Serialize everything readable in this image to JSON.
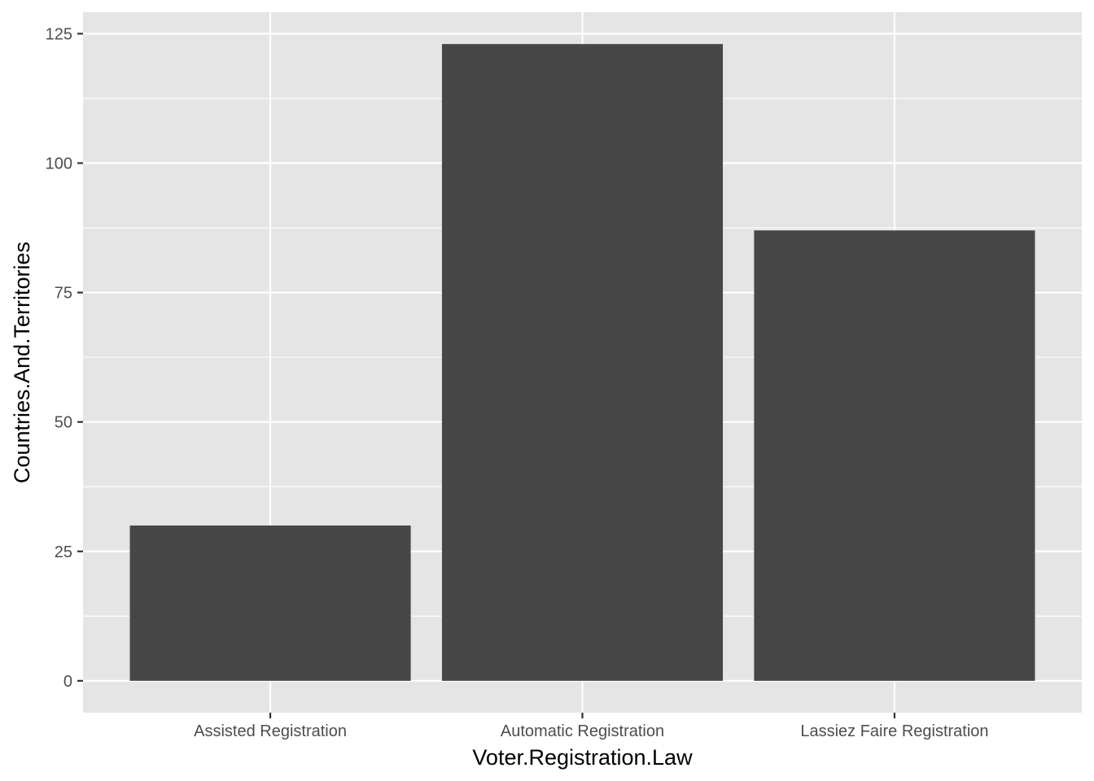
{
  "chart_data": {
    "type": "bar",
    "categories": [
      "Assisted Registration",
      "Automatic Registration",
      "Lassiez Faire Registration"
    ],
    "values": [
      30,
      123,
      87
    ],
    "xlabel": "Voter.Registration.Law",
    "ylabel": "Countries.And.Territories",
    "ylim": [
      -6.15,
      129.15
    ],
    "y_ticks": [
      0,
      25,
      50,
      75,
      100,
      125
    ],
    "y_tick_labels": [
      "0",
      "25",
      "50",
      "75",
      "100",
      "125"
    ],
    "grid": true,
    "legend": "none",
    "colors": {
      "panel": "#e5e5e5",
      "grid": "#ffffff",
      "bar": "#474747",
      "tick_text": "#4d4d4d",
      "tick_mark": "#333333",
      "title_text": "#000000"
    }
  }
}
